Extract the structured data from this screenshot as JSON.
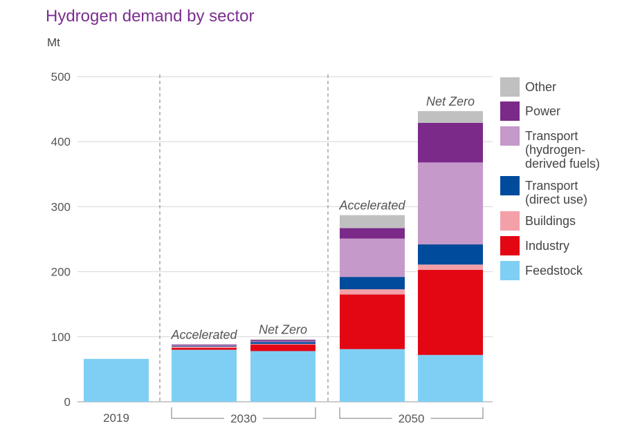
{
  "chart_data": {
    "type": "bar",
    "stacked": true,
    "title": "Hydrogen demand by sector",
    "ylabel": "Mt",
    "ylim": [
      0,
      500
    ],
    "yticks": [
      0,
      100,
      200,
      300,
      400,
      500
    ],
    "grid": true,
    "legend_position": "right",
    "bars": [
      {
        "label": "2019",
        "scenario": "",
        "group": "2019"
      },
      {
        "label": "Accelerated",
        "scenario": "Accelerated",
        "group": "2030"
      },
      {
        "label": "Net Zero",
        "scenario": "Net Zero",
        "group": "2030"
      },
      {
        "label": "Accelerated",
        "scenario": "Accelerated",
        "group": "2050"
      },
      {
        "label": "Net Zero",
        "scenario": "Net Zero",
        "group": "2050"
      }
    ],
    "groups": [
      "2019",
      "2030",
      "2050"
    ],
    "series": [
      {
        "name": "Feedstock",
        "color": "#7fcff4",
        "values": [
          66,
          80,
          78,
          81,
          72
        ]
      },
      {
        "name": "Industry",
        "color": "#e30613",
        "values": [
          0,
          3,
          10,
          84,
          131
        ]
      },
      {
        "name": "Buildings",
        "color": "#f4a0a8",
        "values": [
          0,
          2,
          1,
          8,
          8
        ]
      },
      {
        "name": "Transport\n(direct use)",
        "color": "#004b9b",
        "values": [
          0,
          1,
          3,
          19,
          31
        ]
      },
      {
        "name": "Transport\n(hydrogen-\nderived fuels)",
        "color": "#c599c9",
        "values": [
          0,
          1,
          1,
          59,
          126
        ]
      },
      {
        "name": "Power",
        "color": "#7b2a8a",
        "values": [
          0,
          1,
          2,
          16,
          61
        ]
      },
      {
        "name": "Other",
        "color": "#c0c0c0",
        "values": [
          0,
          0,
          1,
          20,
          18
        ]
      }
    ]
  }
}
